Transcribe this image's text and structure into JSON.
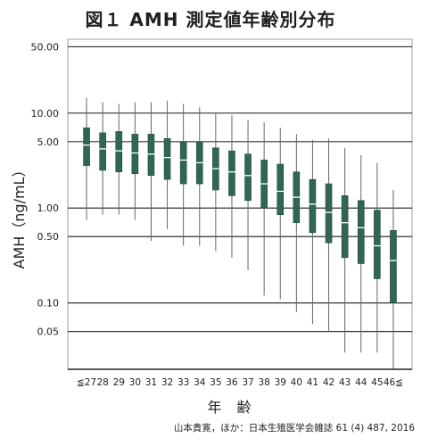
{
  "chart_data": {
    "type": "boxplot",
    "title": "図１ AMH 測定値年齢別分布",
    "xlabel": "年 齢",
    "ylabel": "AMH（ng/mL）",
    "yscale": "log",
    "ylim": [
      0.02,
      60
    ],
    "grid": true,
    "y_ticks": [
      "50.00",
      "10.00",
      "5.00",
      "1.00",
      "0.50",
      "0.10",
      "0.05"
    ],
    "categories": [
      "≦27",
      "28",
      "29",
      "30",
      "31",
      "32",
      "33",
      "34",
      "35",
      "36",
      "37",
      "38",
      "39",
      "40",
      "41",
      "42",
      "43",
      "44",
      "45",
      "46≦"
    ],
    "series": [
      {
        "boxes": [
          {
            "whisker_low": 0.75,
            "q1": 2.8,
            "median": 4.6,
            "q3": 7.0,
            "whisker_high": 14.5
          },
          {
            "whisker_low": 0.85,
            "q1": 2.5,
            "median": 4.2,
            "q3": 6.2,
            "whisker_high": 13.0
          },
          {
            "whisker_low": 0.85,
            "q1": 2.4,
            "median": 4.0,
            "q3": 6.4,
            "whisker_high": 12.5
          },
          {
            "whisker_low": 0.75,
            "q1": 2.3,
            "median": 3.8,
            "q3": 6.0,
            "whisker_high": 13.0
          },
          {
            "whisker_low": 0.45,
            "q1": 2.2,
            "median": 3.7,
            "q3": 6.0,
            "whisker_high": 13.0
          },
          {
            "whisker_low": 0.6,
            "q1": 2.0,
            "median": 3.4,
            "q3": 5.4,
            "whisker_high": 13.5
          },
          {
            "whisker_low": 0.4,
            "q1": 1.8,
            "median": 3.2,
            "q3": 5.0,
            "whisker_high": 12.5
          },
          {
            "whisker_low": 0.4,
            "q1": 1.8,
            "median": 3.0,
            "q3": 4.9,
            "whisker_high": 11.5
          },
          {
            "whisker_low": 0.35,
            "q1": 1.55,
            "median": 2.6,
            "q3": 4.3,
            "whisker_high": 10.0
          },
          {
            "whisker_low": 0.3,
            "q1": 1.35,
            "median": 2.4,
            "q3": 4.0,
            "whisker_high": 9.5
          },
          {
            "whisker_low": 0.22,
            "q1": 1.2,
            "median": 2.2,
            "q3": 3.7,
            "whisker_high": 8.5
          },
          {
            "whisker_low": 0.12,
            "q1": 1.0,
            "median": 1.8,
            "q3": 3.2,
            "whisker_high": 8.0
          },
          {
            "whisker_low": 0.11,
            "q1": 0.85,
            "median": 1.5,
            "q3": 2.9,
            "whisker_high": 7.0
          },
          {
            "whisker_low": 0.08,
            "q1": 0.7,
            "median": 1.3,
            "q3": 2.4,
            "whisker_high": 6.0
          },
          {
            "whisker_low": 0.06,
            "q1": 0.55,
            "median": 1.1,
            "q3": 2.0,
            "whisker_high": 5.2
          },
          {
            "whisker_low": 0.05,
            "q1": 0.43,
            "median": 0.9,
            "q3": 1.8,
            "whisker_high": 5.4
          },
          {
            "whisker_low": 0.03,
            "q1": 0.3,
            "median": 0.7,
            "q3": 1.35,
            "whisker_high": 4.3
          },
          {
            "whisker_low": 0.03,
            "q1": 0.26,
            "median": 0.62,
            "q3": 1.2,
            "whisker_high": 3.6
          },
          {
            "whisker_low": 0.03,
            "q1": 0.18,
            "median": 0.4,
            "q3": 0.95,
            "whisker_high": 3.0
          },
          {
            "whisker_low": 0.02,
            "q1": 0.1,
            "median": 0.28,
            "q3": 0.58,
            "whisker_high": 1.55
          }
        ]
      }
    ]
  },
  "citation": "山本貴寛，ほか：日本生殖医学会雑誌 61 (4) 487, 2016",
  "colors": {
    "box_fill": "#2f6655",
    "median_line": "#ffffff",
    "whisker": "#666666",
    "grid": "#333333",
    "axis": "#222222"
  }
}
